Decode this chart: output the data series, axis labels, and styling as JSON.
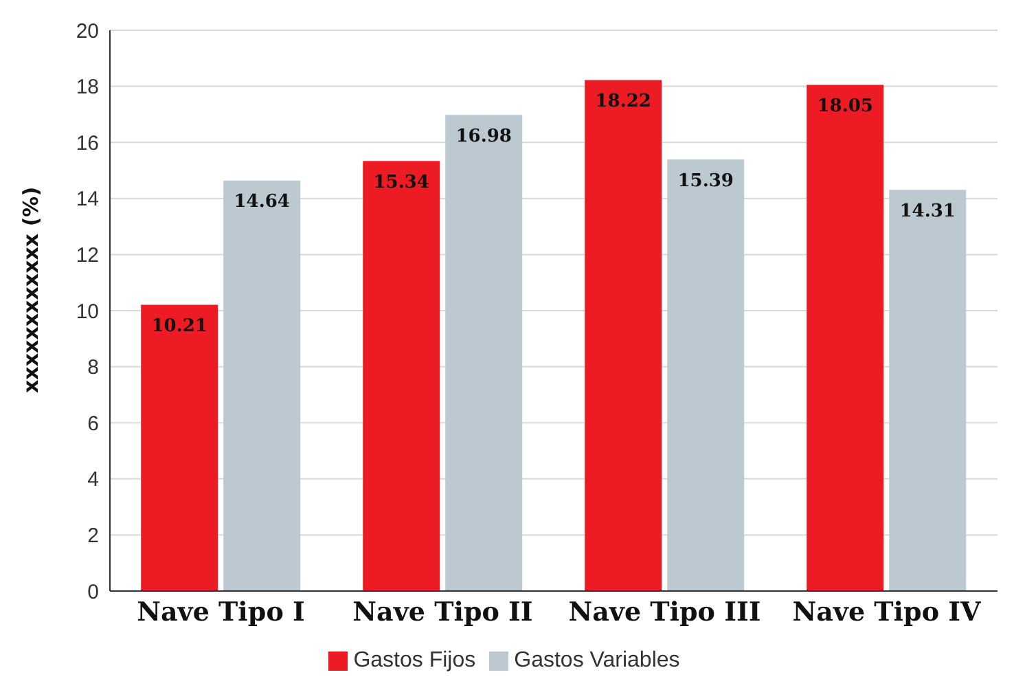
{
  "chart_data": {
    "type": "bar",
    "ylabel": "xxxxxxxxxxxx (%)",
    "categories": [
      "Nave Tipo I",
      "Nave Tipo II",
      "Nave Tipo III",
      "Nave Tipo IV"
    ],
    "series": [
      {
        "name": "Gastos Fijos",
        "color": "#ed1c24",
        "values": [
          10.21,
          15.34,
          18.22,
          18.05
        ]
      },
      {
        "name": "Gastos Variables",
        "color": "#bdc9d1",
        "values": [
          14.64,
          16.98,
          15.39,
          14.31
        ]
      }
    ],
    "ylim": [
      0,
      20
    ],
    "yticks": [
      0,
      2,
      4,
      6,
      8,
      10,
      12,
      14,
      16,
      18,
      20
    ],
    "grid": "y",
    "legend": "bottom",
    "data_labels": true
  }
}
